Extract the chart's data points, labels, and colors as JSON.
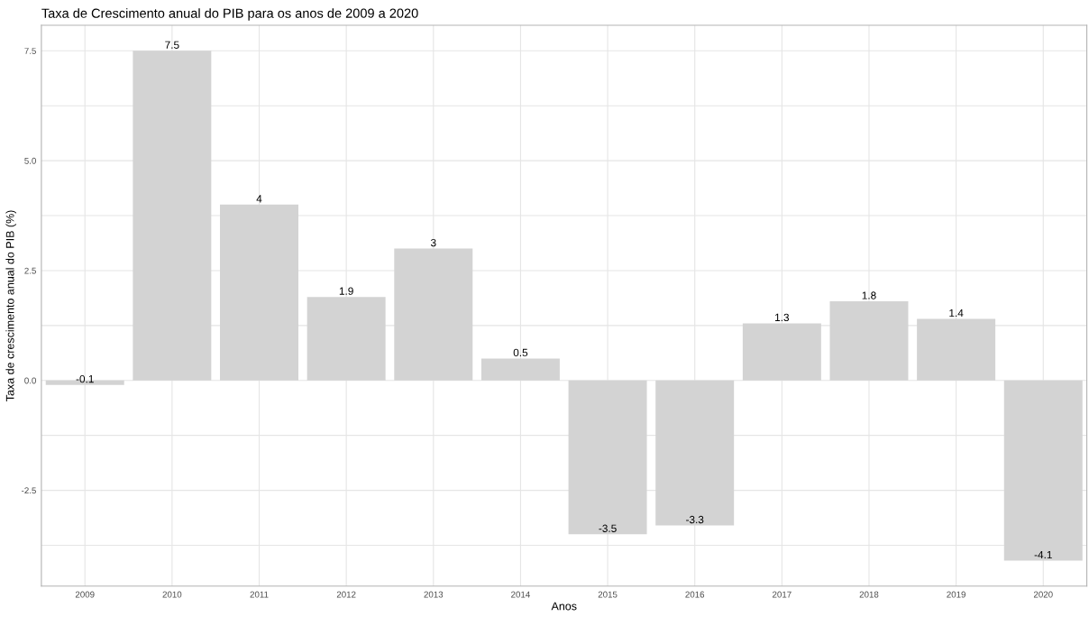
{
  "chart_data": {
    "type": "bar",
    "title": "Taxa de Crescimento anual do PIB para os anos de 2009 a 2020",
    "xlabel": "Anos",
    "ylabel": "Taxa de crescimento anual do PIB (%)",
    "categories": [
      "2009",
      "2010",
      "2011",
      "2012",
      "2013",
      "2014",
      "2015",
      "2016",
      "2017",
      "2018",
      "2019",
      "2020"
    ],
    "values": [
      -0.1,
      7.5,
      4,
      1.9,
      3,
      0.5,
      -3.5,
      -3.3,
      1.3,
      1.8,
      1.4,
      -4.1
    ],
    "value_labels": [
      "-0.1",
      "7.5",
      "4",
      "1.9",
      "3",
      "0.5",
      "-3.5",
      "-3.3",
      "1.3",
      "1.8",
      "1.4",
      "-4.1"
    ],
    "color": "#d3d3d3",
    "ylim": [
      -4.68,
      8.08
    ],
    "yticks": [
      {
        "value": -3.75,
        "label": null
      },
      "-2.5",
      {
        "value": -1.25,
        "label": null
      },
      "0.0",
      {
        "value": 1.25,
        "label": null
      },
      "2.5",
      {
        "value": 3.75,
        "label": null
      },
      "5.0",
      {
        "value": 6.25,
        "label": null
      },
      "7.5"
    ],
    "grid": true
  }
}
